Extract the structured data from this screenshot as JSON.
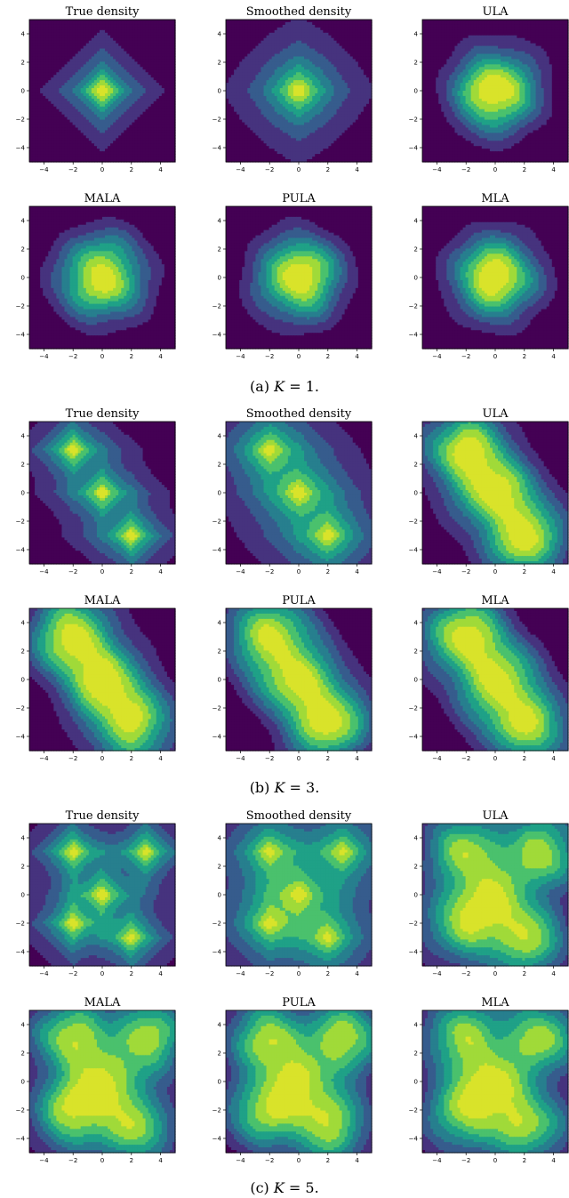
{
  "colors": {
    "levels": [
      "#440154",
      "#46337e",
      "#365c8d",
      "#277f8e",
      "#1fa187",
      "#4ac16d",
      "#a0da39",
      "#d9e32a"
    ]
  },
  "chart_data": [
    {
      "caption": "(a) K = 1.",
      "caption_prefix": "(a) ",
      "caption_var": "K",
      "caption_suffix": " = 1.",
      "K": 1,
      "modes": [
        [
          0,
          0
        ]
      ],
      "panels": [
        {
          "type": "heatmap",
          "title": "True density",
          "kind": "true",
          "xlim": [
            -5,
            5
          ],
          "ylim": [
            -5,
            5
          ],
          "xticks": [
            -4,
            -2,
            0,
            2,
            4
          ],
          "yticks": [
            4,
            2,
            0,
            -2,
            -4
          ],
          "modes": [
            [
              0,
              0
            ]
          ],
          "levels": 8
        },
        {
          "type": "heatmap",
          "title": "Smoothed density",
          "kind": "smooth",
          "xlim": [
            -5,
            5
          ],
          "ylim": [
            -5,
            5
          ],
          "xticks": [
            -4,
            -2,
            0,
            2,
            4
          ],
          "yticks": [
            4,
            2,
            0,
            -2,
            -4
          ],
          "modes": [
            [
              0,
              0
            ]
          ],
          "levels": 8
        },
        {
          "type": "heatmap",
          "title": "ULA",
          "kind": "sample",
          "xlim": [
            -5,
            5
          ],
          "ylim": [
            -5,
            5
          ],
          "xticks": [
            -4,
            -2,
            0,
            2,
            4
          ],
          "yticks": [
            4,
            2,
            0,
            -2,
            -4
          ],
          "modes": [
            [
              0,
              0
            ]
          ],
          "levels": 8
        },
        {
          "type": "heatmap",
          "title": "MALA",
          "kind": "sample",
          "xlim": [
            -5,
            5
          ],
          "ylim": [
            -5,
            5
          ],
          "xticks": [
            -4,
            -2,
            0,
            2,
            4
          ],
          "yticks": [
            4,
            2,
            0,
            -2,
            -4
          ],
          "modes": [
            [
              0,
              0
            ]
          ],
          "levels": 8
        },
        {
          "type": "heatmap",
          "title": "PULA",
          "kind": "sample",
          "xlim": [
            -5,
            5
          ],
          "ylim": [
            -5,
            5
          ],
          "xticks": [
            -4,
            -2,
            0,
            2,
            4
          ],
          "yticks": [
            4,
            2,
            0,
            -2,
            -4
          ],
          "modes": [
            [
              0,
              0
            ]
          ],
          "levels": 8
        },
        {
          "type": "heatmap",
          "title": "MLA",
          "kind": "sample",
          "xlim": [
            -5,
            5
          ],
          "ylim": [
            -5,
            5
          ],
          "xticks": [
            -4,
            -2,
            0,
            2,
            4
          ],
          "yticks": [
            4,
            2,
            0,
            -2,
            -4
          ],
          "modes": [
            [
              0,
              0
            ]
          ],
          "levels": 8
        }
      ]
    },
    {
      "caption": "(b) K = 3.",
      "caption_prefix": "(b) ",
      "caption_var": "K",
      "caption_suffix": " = 3.",
      "K": 3,
      "modes": [
        [
          -2,
          3
        ],
        [
          0,
          0
        ],
        [
          2,
          -3
        ]
      ],
      "panels": [
        {
          "type": "heatmap",
          "title": "True density",
          "kind": "true",
          "xlim": [
            -5,
            5
          ],
          "ylim": [
            -5,
            5
          ],
          "xticks": [
            -4,
            -2,
            0,
            2,
            4
          ],
          "yticks": [
            4,
            2,
            0,
            -2,
            -4
          ],
          "modes": [
            [
              -2,
              3
            ],
            [
              0,
              0
            ],
            [
              2,
              -3
            ]
          ],
          "levels": 8
        },
        {
          "type": "heatmap",
          "title": "Smoothed density",
          "kind": "smooth",
          "xlim": [
            -5,
            5
          ],
          "ylim": [
            -5,
            5
          ],
          "xticks": [
            -4,
            -2,
            0,
            2,
            4
          ],
          "yticks": [
            4,
            2,
            0,
            -2,
            -4
          ],
          "modes": [
            [
              -2,
              3
            ],
            [
              0,
              0
            ],
            [
              2,
              -3
            ]
          ],
          "levels": 8
        },
        {
          "type": "heatmap",
          "title": "ULA",
          "kind": "sample",
          "xlim": [
            -5,
            5
          ],
          "ylim": [
            -5,
            5
          ],
          "xticks": [
            -4,
            -2,
            0,
            2,
            4
          ],
          "yticks": [
            4,
            2,
            0,
            -2,
            -4
          ],
          "modes": [
            [
              -2,
              3
            ],
            [
              0,
              0
            ],
            [
              2,
              -3
            ]
          ],
          "levels": 8
        },
        {
          "type": "heatmap",
          "title": "MALA",
          "kind": "sample",
          "xlim": [
            -5,
            5
          ],
          "ylim": [
            -5,
            5
          ],
          "xticks": [
            -4,
            -2,
            0,
            2,
            4
          ],
          "yticks": [
            4,
            2,
            0,
            -2,
            -4
          ],
          "modes": [
            [
              -2,
              3
            ],
            [
              0,
              0
            ],
            [
              2,
              -3
            ]
          ],
          "levels": 8
        },
        {
          "type": "heatmap",
          "title": "PULA",
          "kind": "sample",
          "xlim": [
            -5,
            5
          ],
          "ylim": [
            -5,
            5
          ],
          "xticks": [
            -4,
            -2,
            0,
            2,
            4
          ],
          "yticks": [
            4,
            2,
            0,
            -2,
            -4
          ],
          "modes": [
            [
              -2,
              3
            ],
            [
              0,
              0
            ],
            [
              2,
              -3
            ]
          ],
          "levels": 8
        },
        {
          "type": "heatmap",
          "title": "MLA",
          "kind": "sample",
          "xlim": [
            -5,
            5
          ],
          "ylim": [
            -5,
            5
          ],
          "xticks": [
            -4,
            -2,
            0,
            2,
            4
          ],
          "yticks": [
            4,
            2,
            0,
            -2,
            -4
          ],
          "modes": [
            [
              -2,
              3
            ],
            [
              0,
              0
            ],
            [
              2,
              -3
            ]
          ],
          "levels": 8
        }
      ]
    },
    {
      "caption": "(c) K = 5.",
      "caption_prefix": "(c) ",
      "caption_var": "K",
      "caption_suffix": " = 5.",
      "K": 5,
      "modes": [
        [
          -2,
          3
        ],
        [
          3,
          3
        ],
        [
          0,
          0
        ],
        [
          -2,
          -2
        ],
        [
          2,
          -3
        ]
      ],
      "panels": [
        {
          "type": "heatmap",
          "title": "True density",
          "kind": "true",
          "xlim": [
            -5,
            5
          ],
          "ylim": [
            -5,
            5
          ],
          "xticks": [
            -4,
            -2,
            0,
            2,
            4
          ],
          "yticks": [
            4,
            2,
            0,
            -2,
            -4
          ],
          "modes": [
            [
              -2,
              3
            ],
            [
              3,
              3
            ],
            [
              0,
              0
            ],
            [
              -2,
              -2
            ],
            [
              2,
              -3
            ]
          ],
          "levels": 8
        },
        {
          "type": "heatmap",
          "title": "Smoothed density",
          "kind": "smooth",
          "xlim": [
            -5,
            5
          ],
          "ylim": [
            -5,
            5
          ],
          "xticks": [
            -4,
            -2,
            0,
            2,
            4
          ],
          "yticks": [
            4,
            2,
            0,
            -2,
            -4
          ],
          "modes": [
            [
              -2,
              3
            ],
            [
              3,
              3
            ],
            [
              0,
              0
            ],
            [
              -2,
              -2
            ],
            [
              2,
              -3
            ]
          ],
          "levels": 8
        },
        {
          "type": "heatmap",
          "title": "ULA",
          "kind": "sample",
          "xlim": [
            -5,
            5
          ],
          "ylim": [
            -5,
            5
          ],
          "xticks": [
            -4,
            -2,
            0,
            2,
            4
          ],
          "yticks": [
            4,
            2,
            0,
            -2,
            -4
          ],
          "modes": [
            [
              -2,
              3
            ],
            [
              3,
              3
            ],
            [
              0,
              0
            ],
            [
              -2,
              -2
            ],
            [
              2,
              -3
            ]
          ],
          "levels": 8
        },
        {
          "type": "heatmap",
          "title": "MALA",
          "kind": "sample",
          "xlim": [
            -5,
            5
          ],
          "ylim": [
            -5,
            5
          ],
          "xticks": [
            -4,
            -2,
            0,
            2,
            4
          ],
          "yticks": [
            4,
            2,
            0,
            -2,
            -4
          ],
          "modes": [
            [
              -2,
              3
            ],
            [
              3,
              3
            ],
            [
              0,
              0
            ],
            [
              -2,
              -2
            ],
            [
              2,
              -3
            ]
          ],
          "levels": 8
        },
        {
          "type": "heatmap",
          "title": "PULA",
          "kind": "sample",
          "xlim": [
            -5,
            5
          ],
          "ylim": [
            -5,
            5
          ],
          "xticks": [
            -4,
            -2,
            0,
            2,
            4
          ],
          "yticks": [
            4,
            2,
            0,
            -2,
            -4
          ],
          "modes": [
            [
              -2,
              3
            ],
            [
              3,
              3
            ],
            [
              0,
              0
            ],
            [
              -2,
              -2
            ],
            [
              2,
              -3
            ]
          ],
          "levels": 8
        },
        {
          "type": "heatmap",
          "title": "MLA",
          "kind": "sample",
          "xlim": [
            -5,
            5
          ],
          "ylim": [
            -5,
            5
          ],
          "xticks": [
            -4,
            -2,
            0,
            2,
            4
          ],
          "yticks": [
            4,
            2,
            0,
            -2,
            -4
          ],
          "modes": [
            [
              -2,
              3
            ],
            [
              3,
              3
            ],
            [
              0,
              0
            ],
            [
              -2,
              -2
            ],
            [
              2,
              -3
            ]
          ],
          "levels": 8
        }
      ]
    }
  ]
}
